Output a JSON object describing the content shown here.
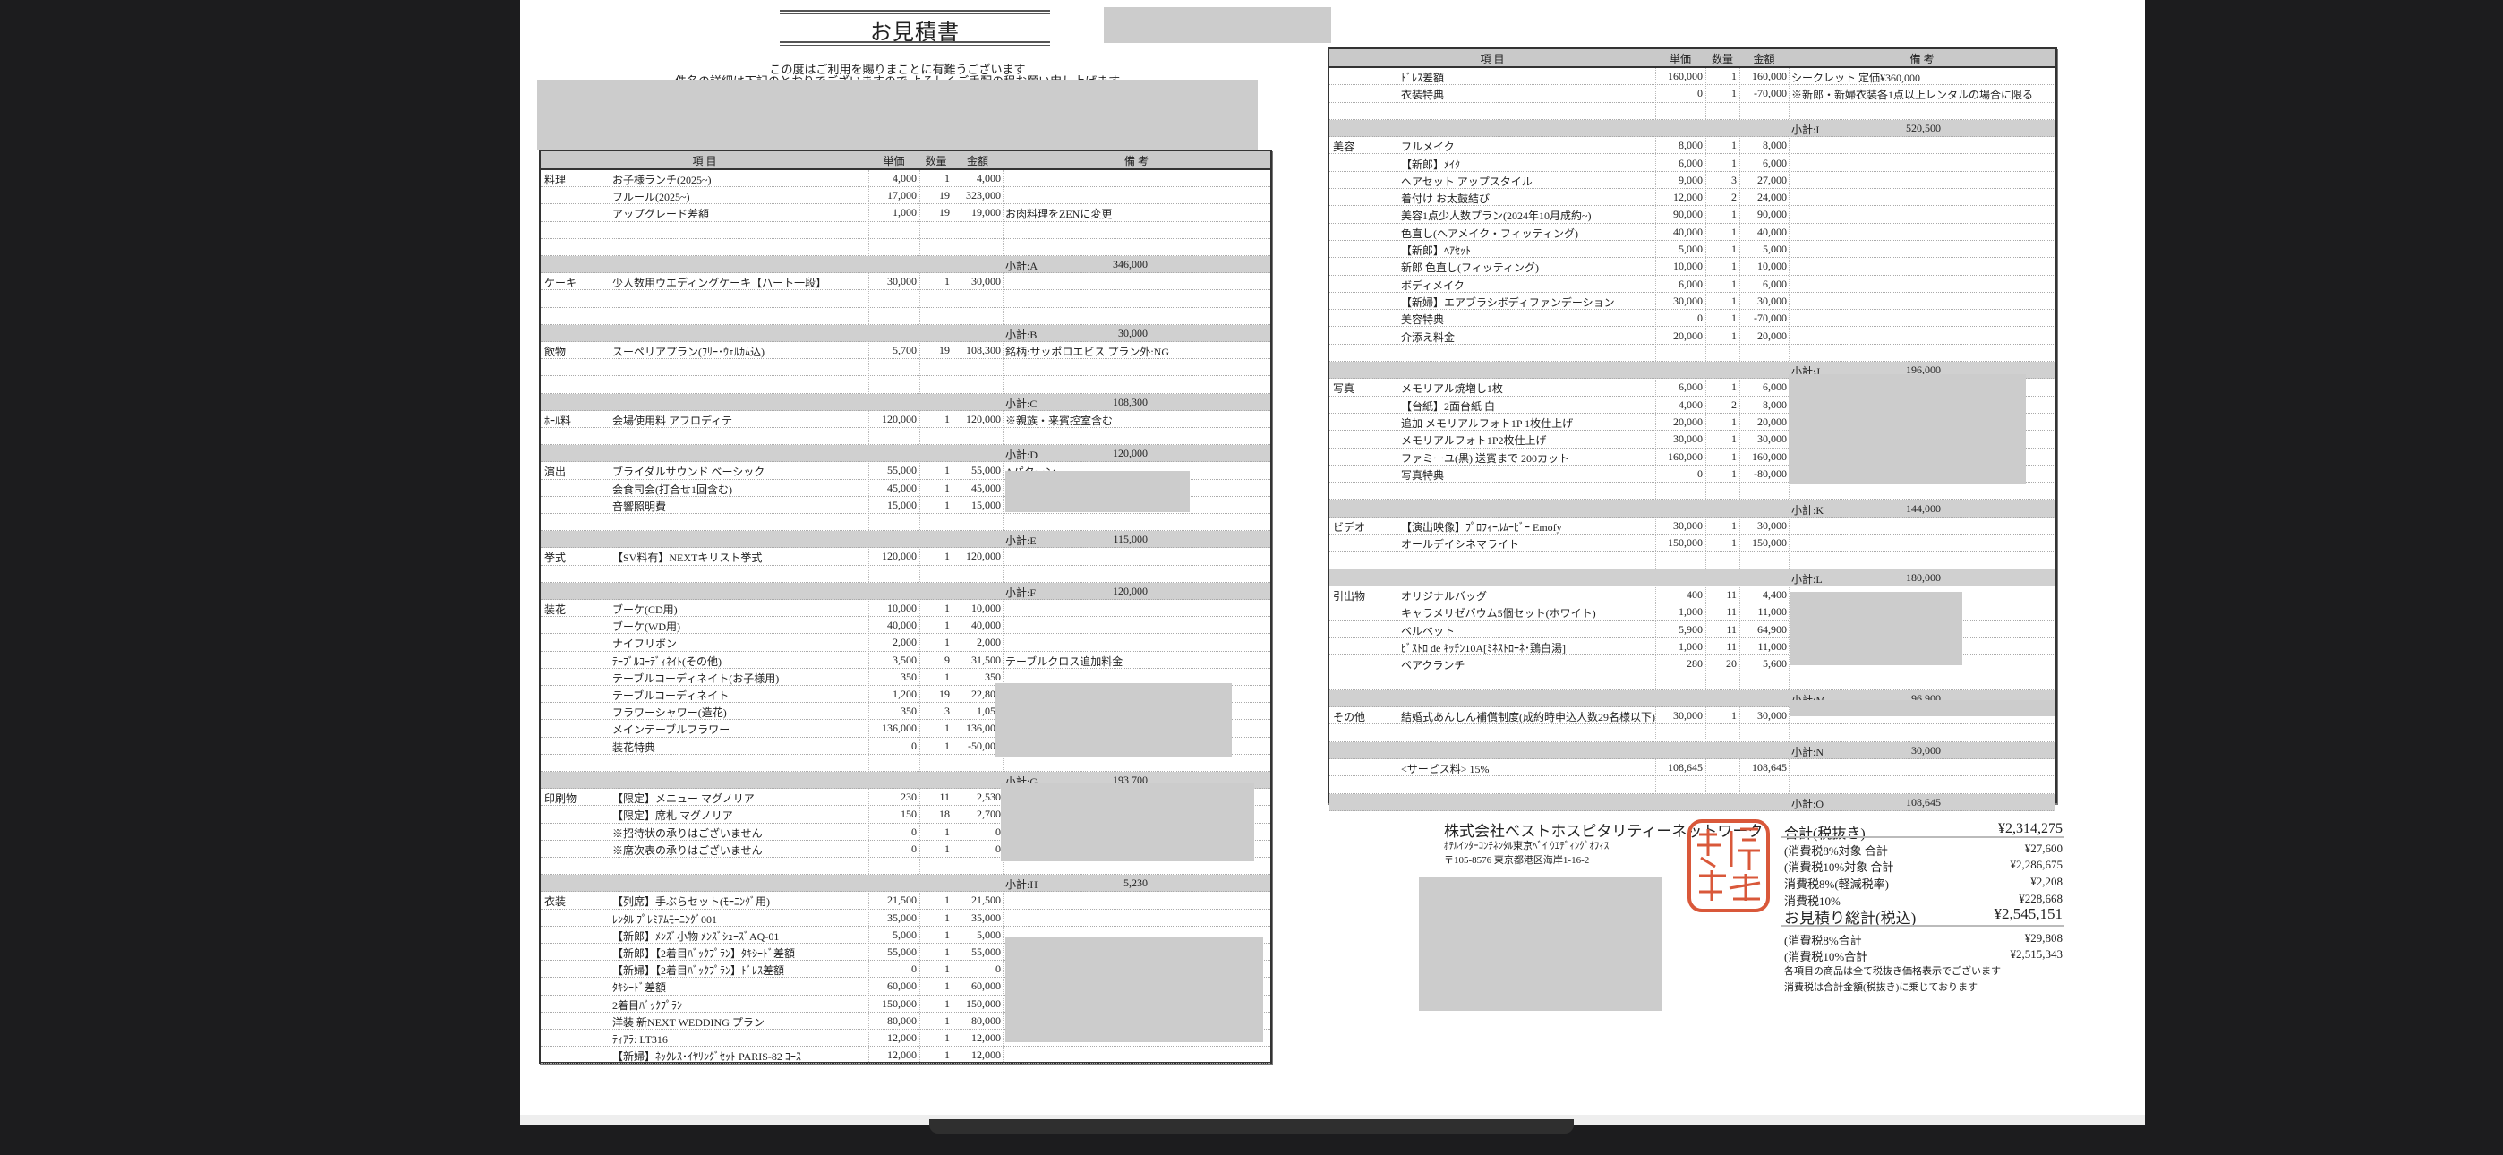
{
  "document": {
    "title": "お見積書",
    "greeting_line1": "この度はご利用を賜りまことに有難うございます",
    "greeting_line2": "件名の詳細は下記のとおりでございますので よろしくご手配の程お願い申し上げます"
  },
  "table_headers": {
    "item": "項 目",
    "price": "単価",
    "qty": "数量",
    "amount": "金額",
    "note": "備 考"
  },
  "left_table": {
    "rows": [
      {
        "cat": "料理",
        "item": "お子様ランチ(2025~)",
        "price": "4,000",
        "qty": "1",
        "amount": "4,000",
        "note": ""
      },
      {
        "item": "フルール(2025~)",
        "price": "17,000",
        "qty": "19",
        "amount": "323,000"
      },
      {
        "item": "アップグレード差額",
        "price": "1,000",
        "qty": "19",
        "amount": "19,000",
        "note": "お肉料理をZENに変更"
      },
      {
        "type": "blank"
      },
      {
        "type": "blank"
      },
      {
        "type": "subtotal",
        "label": "小計:A",
        "value": "346,000"
      },
      {
        "cat": "ケーキ",
        "item": "少人数用ウエディングケーキ【ハート一段】",
        "price": "30,000",
        "qty": "1",
        "amount": "30,000"
      },
      {
        "type": "blank"
      },
      {
        "type": "blank"
      },
      {
        "type": "subtotal",
        "label": "小計:B",
        "value": "30,000"
      },
      {
        "cat": "飲物",
        "item": "スーペリアプラン(ﾌﾘｰ･ｳｪﾙｶﾑ込)",
        "price": "5,700",
        "qty": "19",
        "amount": "108,300",
        "note": "銘柄:サッポロエビス プラン外:NG"
      },
      {
        "type": "blank"
      },
      {
        "type": "blank"
      },
      {
        "type": "subtotal",
        "label": "小計:C",
        "value": "108,300"
      },
      {
        "cat": "ﾎｰﾙ料",
        "item": "会場使用料 アフロディテ",
        "price": "120,000",
        "qty": "1",
        "amount": "120,000",
        "note": "※親族・来賓控室含む"
      },
      {
        "type": "blank"
      },
      {
        "type": "subtotal",
        "label": "小計:D",
        "value": "120,000"
      },
      {
        "cat": "演出",
        "item": "ブライダルサウンド ベーシック",
        "price": "55,000",
        "qty": "1",
        "amount": "55,000",
        "note": "Aパターン"
      },
      {
        "item": "会食司会(打合せ1回含む)",
        "price": "45,000",
        "qty": "1",
        "amount": "45,000"
      },
      {
        "item": "音響照明費",
        "price": "15,000",
        "qty": "1",
        "amount": "15,000"
      },
      {
        "type": "blank"
      },
      {
        "type": "subtotal",
        "label": "小計:E",
        "value": "115,000"
      },
      {
        "cat": "挙式",
        "item": "【SV料有】NEXTキリスト挙式",
        "price": "120,000",
        "qty": "1",
        "amount": "120,000"
      },
      {
        "type": "blank"
      },
      {
        "type": "subtotal",
        "label": "小計:F",
        "value": "120,000"
      },
      {
        "cat": "装花",
        "item": "ブーケ(CD用)",
        "price": "10,000",
        "qty": "1",
        "amount": "10,000"
      },
      {
        "item": "ブーケ(WD用)",
        "price": "40,000",
        "qty": "1",
        "amount": "40,000"
      },
      {
        "item": "ナイフリボン",
        "price": "2,000",
        "qty": "1",
        "amount": "2,000"
      },
      {
        "item": "ﾃｰﾌﾞﾙｺｰﾃﾞｨﾈｲﾄ(その他)",
        "price": "3,500",
        "qty": "9",
        "amount": "31,500",
        "note": "テーブルクロス追加料金"
      },
      {
        "item": "テーブルコーディネイト(お子様用)",
        "price": "350",
        "qty": "1",
        "amount": "350"
      },
      {
        "item": "テーブルコーディネイト",
        "price": "1,200",
        "qty": "19",
        "amount": "22,800"
      },
      {
        "item": "フラワーシャワー(造花)",
        "price": "350",
        "qty": "3",
        "amount": "1,050"
      },
      {
        "item": "メインテーブルフラワー",
        "price": "136,000",
        "qty": "1",
        "amount": "136,000"
      },
      {
        "item": "装花特典",
        "price": "0",
        "qty": "1",
        "amount": "-50,000"
      },
      {
        "type": "blank"
      },
      {
        "type": "subtotal",
        "label": "小計:G",
        "value": "193,700"
      },
      {
        "cat": "印刷物",
        "item": "【限定】メニュー マグノリア",
        "price": "230",
        "qty": "11",
        "amount": "2,530"
      },
      {
        "item": "【限定】席札 マグノリア",
        "price": "150",
        "qty": "18",
        "amount": "2,700"
      },
      {
        "item": "※招待状の承りはございません",
        "price": "0",
        "qty": "1",
        "amount": "0"
      },
      {
        "item": "※席次表の承りはございません",
        "price": "0",
        "qty": "1",
        "amount": "0"
      },
      {
        "type": "blank"
      },
      {
        "type": "subtotal",
        "label": "小計:H",
        "value": "5,230"
      },
      {
        "cat": "衣装",
        "item": "【列席】手ぶらセット(ﾓｰﾆﾝｸﾞ用)",
        "price": "21,500",
        "qty": "1",
        "amount": "21,500"
      },
      {
        "item": "ﾚﾝﾀﾙ ﾌﾟﾚﾐｱﾑﾓｰﾆﾝｸﾞ001",
        "price": "35,000",
        "qty": "1",
        "amount": "35,000"
      },
      {
        "item": "【新郎】ﾒﾝｽﾞ小物 ﾒﾝｽﾞｼｭｰｽﾞAQ-01",
        "price": "5,000",
        "qty": "1",
        "amount": "5,000"
      },
      {
        "item": "【新郎】【2着目ﾊﾞｯｸﾌﾟﾗﾝ】ﾀｷｼｰﾄﾞ差額",
        "price": "55,000",
        "qty": "1",
        "amount": "55,000"
      },
      {
        "item": "【新婦】【2着目ﾊﾞｯｸﾌﾟﾗﾝ】ﾄﾞﾚｽ差額",
        "price": "0",
        "qty": "1",
        "amount": "0"
      },
      {
        "item": "ﾀｷｼｰﾄﾞ差額",
        "price": "60,000",
        "qty": "1",
        "amount": "60,000"
      },
      {
        "item": "2着目ﾊﾞｯｸﾌﾟﾗﾝ",
        "price": "150,000",
        "qty": "1",
        "amount": "150,000"
      },
      {
        "item": "洋装 新NEXT WEDDING プラン",
        "price": "80,000",
        "qty": "1",
        "amount": "80,000"
      },
      {
        "item": "ﾃｨｱﾗ: LT316",
        "price": "12,000",
        "qty": "1",
        "amount": "12,000"
      },
      {
        "item": "【新婦】ﾈｯｸﾚｽ･ｲﾔﾘﾝｸﾞｾｯﾄ PARIS-82 ｺｰｽ",
        "price": "12,000",
        "qty": "1",
        "amount": "12,000"
      }
    ]
  },
  "right_table": {
    "rows": [
      {
        "item": "ﾄﾞﾚｽ差額",
        "price": "160,000",
        "qty": "1",
        "amount": "160,000",
        "note": "シークレット 定価¥360,000"
      },
      {
        "item": "衣装特典",
        "price": "0",
        "qty": "1",
        "amount": "-70,000",
        "note": "※新郎・新婦衣装各1点以上レンタルの場合に限る"
      },
      {
        "type": "blank"
      },
      {
        "type": "subtotal",
        "label": "小計:I",
        "value": "520,500"
      },
      {
        "cat": "美容",
        "item": "フルメイク",
        "price": "8,000",
        "qty": "1",
        "amount": "8,000"
      },
      {
        "item": "【新郎】ﾒｲｸ",
        "price": "6,000",
        "qty": "1",
        "amount": "6,000"
      },
      {
        "item": "ヘアセット アップスタイル",
        "price": "9,000",
        "qty": "3",
        "amount": "27,000"
      },
      {
        "item": "着付け お太鼓結び",
        "price": "12,000",
        "qty": "2",
        "amount": "24,000"
      },
      {
        "item": "美容1点少人数プラン(2024年10月成約~)",
        "price": "90,000",
        "qty": "1",
        "amount": "90,000"
      },
      {
        "item": "色直し(ヘアメイク・フィッティング)",
        "price": "40,000",
        "qty": "1",
        "amount": "40,000"
      },
      {
        "item": "【新郎】ﾍｱｾｯﾄ",
        "price": "5,000",
        "qty": "1",
        "amount": "5,000"
      },
      {
        "item": "新郎 色直し(フィッティング)",
        "price": "10,000",
        "qty": "1",
        "amount": "10,000"
      },
      {
        "item": "ボディメイク",
        "price": "6,000",
        "qty": "1",
        "amount": "6,000"
      },
      {
        "item": "【新婦】エアブラシボディファンデーション",
        "price": "30,000",
        "qty": "1",
        "amount": "30,000"
      },
      {
        "item": "美容特典",
        "price": "0",
        "qty": "1",
        "amount": "-70,000"
      },
      {
        "item": "介添え料金",
        "price": "20,000",
        "qty": "1",
        "amount": "20,000"
      },
      {
        "type": "blank"
      },
      {
        "type": "subtotal",
        "label": "小計:J",
        "value": "196,000"
      },
      {
        "cat": "写真",
        "item": "メモリアル焼増し1枚",
        "price": "6,000",
        "qty": "1",
        "amount": "6,000"
      },
      {
        "item": "【台紙】2面台紙 白",
        "price": "4,000",
        "qty": "2",
        "amount": "8,000"
      },
      {
        "item": "追加 メモリアルフォト1P 1枚仕上げ",
        "price": "20,000",
        "qty": "1",
        "amount": "20,000"
      },
      {
        "item": "メモリアルフォト1P2枚仕上げ",
        "price": "30,000",
        "qty": "1",
        "amount": "30,000"
      },
      {
        "item": "ファミーユ(黒) 送賓まで 200カット",
        "price": "160,000",
        "qty": "1",
        "amount": "160,000"
      },
      {
        "item": "写真特典",
        "price": "0",
        "qty": "1",
        "amount": "-80,000"
      },
      {
        "type": "blank"
      },
      {
        "type": "subtotal",
        "label": "小計:K",
        "value": "144,000"
      },
      {
        "cat": "ビデオ",
        "item": "【演出映像】ﾌﾟﾛﾌｨｰﾙﾑｰﾋﾞｰ Emofy",
        "price": "30,000",
        "qty": "1",
        "amount": "30,000"
      },
      {
        "item": "オールデイシネマライト",
        "price": "150,000",
        "qty": "1",
        "amount": "150,000"
      },
      {
        "type": "blank"
      },
      {
        "type": "subtotal",
        "label": "小計:L",
        "value": "180,000"
      },
      {
        "cat": "引出物",
        "item": "オリジナルバッグ",
        "price": "400",
        "qty": "11",
        "amount": "4,400"
      },
      {
        "item": "キャラメリゼバウム5個セット(ホワイト)",
        "price": "1,000",
        "qty": "11",
        "amount": "11,000"
      },
      {
        "item": "ベルベット",
        "price": "5,900",
        "qty": "11",
        "amount": "64,900"
      },
      {
        "item": "ﾋﾞｽﾄﾛ de ｷｯﾁﾝ10A[ﾐﾈｽﾄﾛｰﾈ･鶏白湯]",
        "price": "1,000",
        "qty": "11",
        "amount": "11,000"
      },
      {
        "item": "ペアクランチ",
        "price": "280",
        "qty": "20",
        "amount": "5,600"
      },
      {
        "type": "blank"
      },
      {
        "type": "subtotal",
        "label": "小計:M",
        "value": "96,900"
      },
      {
        "cat": "その他",
        "item": "結婚式あんしん補償制度(成約時申込人数29名様以下)",
        "price": "30,000",
        "qty": "1",
        "amount": "30,000"
      },
      {
        "type": "blank"
      },
      {
        "type": "subtotal",
        "label": "小計:N",
        "value": "30,000"
      },
      {
        "item": "<サービス料> 15%",
        "price": "108,645",
        "qty": "",
        "amount": "108,645"
      },
      {
        "type": "blank"
      },
      {
        "type": "subtotal",
        "label": "小計:O",
        "value": "108,645"
      }
    ]
  },
  "company": {
    "name": "株式会社ベストホスピタリティーネットワーク",
    "office": "ﾎﾃﾙｲﾝﾀｰｺﾝﾁﾈﾝﾀﾙ東京ﾍﾞｲ ｳｴﾃﾞｨﾝｸﾞｵﾌｨｽ",
    "address": "〒105-8576 東京都港区海岸1-16-2",
    "seal_text": "株式会社ベストホスピタリティーネットワーク",
    "seal_color": "#d9583a"
  },
  "totals": {
    "subtotal_ex_tax": {
      "label": "合計(税抜き)",
      "value": "¥2,314,275"
    },
    "target_8": {
      "label": "(消費税8%対象 合計",
      "value": "¥27,600"
    },
    "target_10": {
      "label": "(消費税10%対象 合計",
      "value": "¥2,286,675"
    },
    "tax_8": {
      "label": "消費税8%(軽減税率)",
      "value": "¥2,208"
    },
    "tax_10": {
      "label": "消費税10%",
      "value": "¥228,668"
    },
    "grand_total": {
      "label": "お見積り総計(税込)",
      "value": "¥2,545,151"
    },
    "total_8": {
      "label": "(消費税8%合計",
      "value": "¥29,808"
    },
    "total_10": {
      "label": "(消費税10%合計",
      "value": "¥2,515,343"
    },
    "note1": "各項目の商品は全て税抜き価格表示でございます",
    "note2": "消費税は合計金額(税抜き)に乗じております"
  }
}
